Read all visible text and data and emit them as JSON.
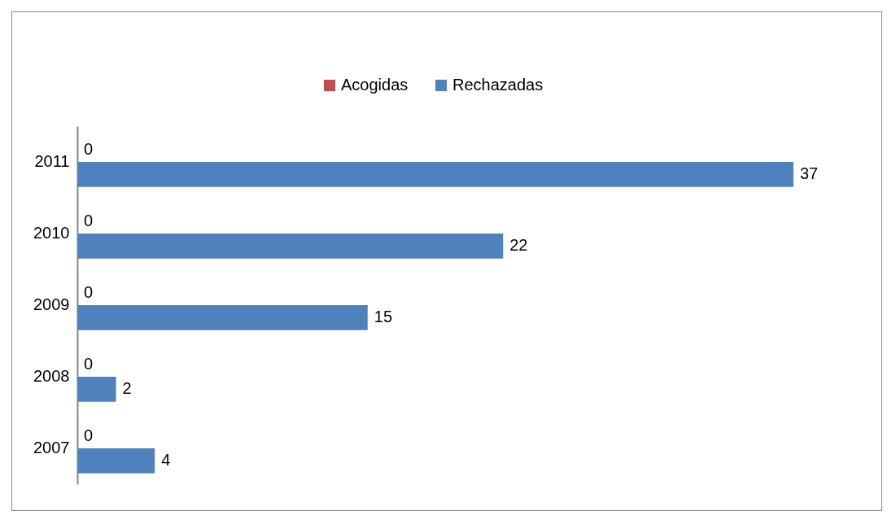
{
  "chart_data": {
    "type": "bar",
    "orientation": "horizontal",
    "categories": [
      "2011",
      "2010",
      "2009",
      "2008",
      "2007"
    ],
    "series": [
      {
        "name": "Acogidas",
        "color": "#c0504d",
        "values": [
          0,
          0,
          0,
          0,
          0
        ]
      },
      {
        "name": "Rechazadas",
        "color": "#4f81bd",
        "values": [
          37,
          22,
          15,
          2,
          4
        ]
      }
    ],
    "data_labels": true,
    "legend": "top"
  }
}
